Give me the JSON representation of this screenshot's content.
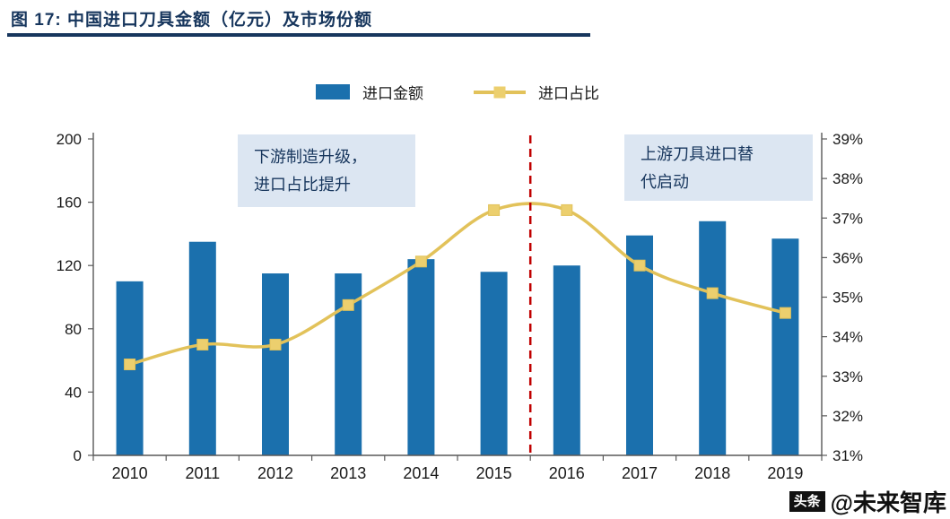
{
  "header": {
    "title": "图 17:  中国进口刀具金额（亿元）及市场份额"
  },
  "legend": {
    "bar_label": "进口金额",
    "line_label": "进口占比"
  },
  "annotations": {
    "left": "下游制造升级，\n进口占比提升",
    "right": "上游刀具进口替\n代启动"
  },
  "watermark": {
    "prefix": "头条",
    "account": "@未来智库"
  },
  "colors": {
    "bar": "#1b70ad",
    "line": "#e2c25a",
    "marker": "#eccf6e",
    "navy": "#17365d",
    "annotation_bg": "#dce6f2",
    "divider": "#c00000",
    "axis": "#595959",
    "text": "#1a1a1a"
  },
  "chart_data": {
    "type": "combo",
    "title": "中国进口刀具金额（亿元）及市场份额",
    "categories": [
      "2010",
      "2011",
      "2012",
      "2013",
      "2014",
      "2015",
      "2016",
      "2017",
      "2018",
      "2019"
    ],
    "series": [
      {
        "name": "进口金额",
        "type": "bar",
        "axis": "left",
        "values": [
          110,
          135,
          115,
          115,
          124,
          116,
          120,
          139,
          148,
          137
        ]
      },
      {
        "name": "进口占比",
        "type": "line",
        "axis": "right",
        "values": [
          33.3,
          33.8,
          33.8,
          34.8,
          35.9,
          37.2,
          37.2,
          35.8,
          35.1,
          34.6
        ]
      }
    ],
    "left_axis": {
      "min": 0,
      "max": 200,
      "step": 40,
      "labels": [
        "0",
        "40",
        "80",
        "120",
        "160",
        "200"
      ]
    },
    "right_axis": {
      "min": 31,
      "max": 39,
      "step": 1,
      "labels": [
        "31%",
        "32%",
        "33%",
        "34%",
        "35%",
        "36%",
        "37%",
        "38%",
        "39%"
      ]
    },
    "legend_position": "top",
    "grid": false,
    "divider_after_category": "2015"
  }
}
